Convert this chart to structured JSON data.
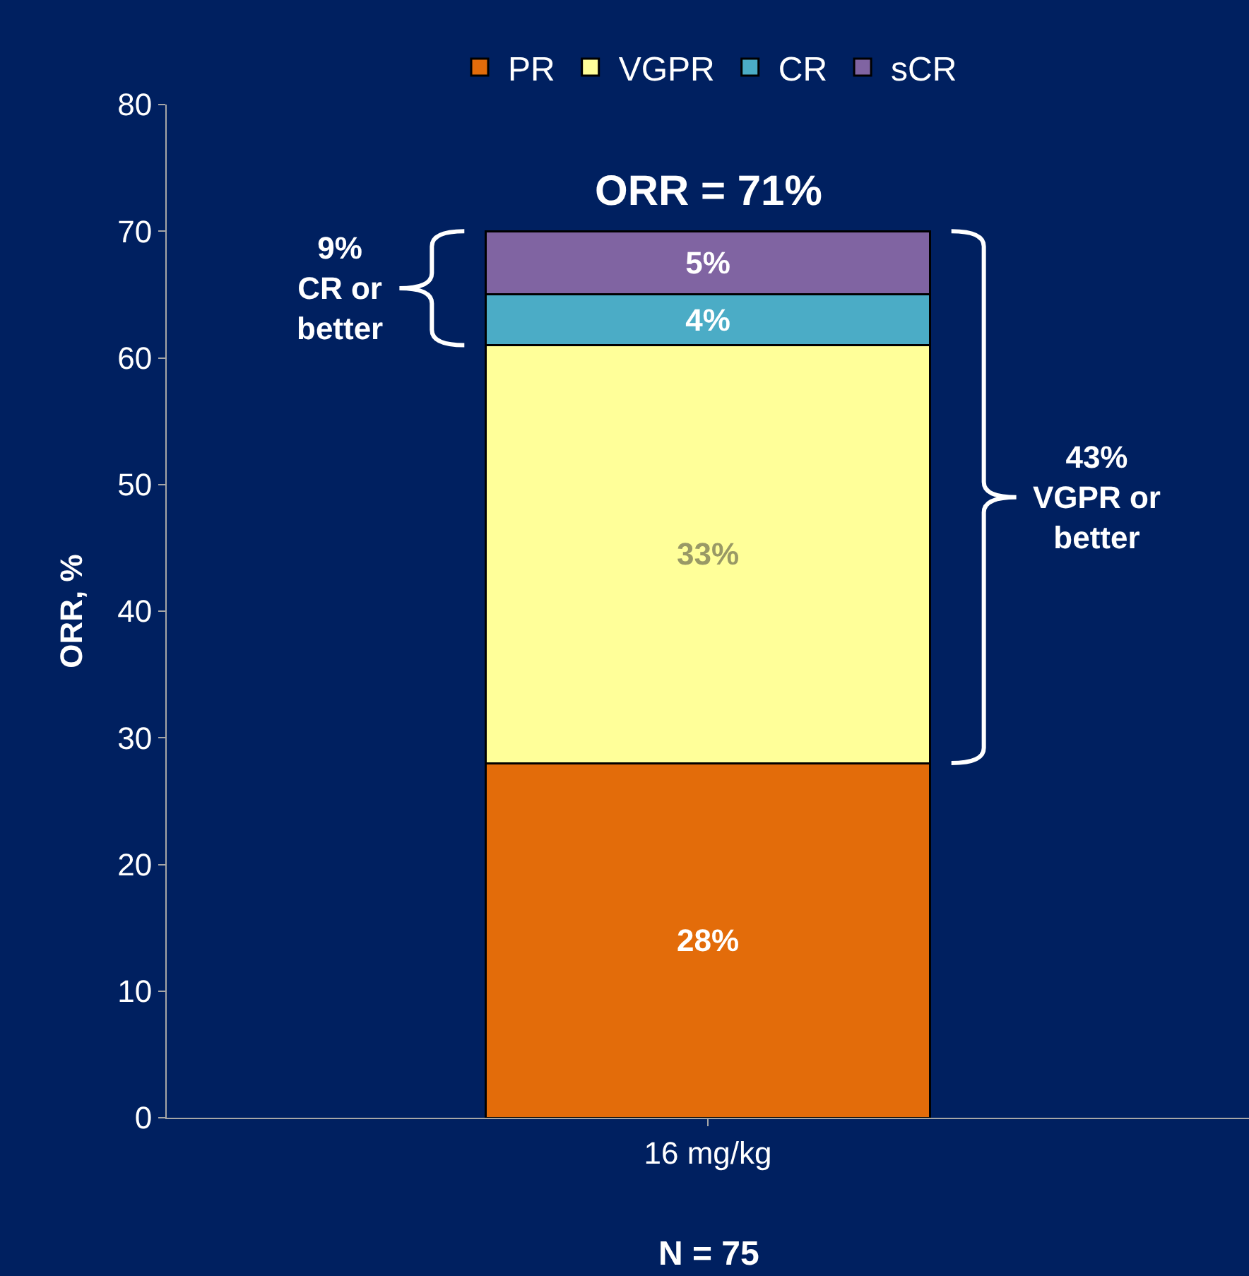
{
  "chart_data": {
    "type": "bar",
    "stacked": true,
    "ylabel": "ORR, %",
    "categories": [
      "16 mg/kg"
    ],
    "series": [
      {
        "name": "PR",
        "color": "#e36c0a",
        "values": [
          28
        ],
        "value_labels": [
          "28%"
        ]
      },
      {
        "name": "VGPR",
        "color": "#ffff99",
        "values": [
          33
        ],
        "value_labels": [
          "33%"
        ]
      },
      {
        "name": "CR",
        "color": "#4bacc6",
        "values": [
          4
        ],
        "value_labels": [
          "4%"
        ]
      },
      {
        "name": "sCR",
        "color": "#8064a2",
        "values": [
          5
        ],
        "value_labels": [
          "5%"
        ]
      }
    ],
    "ylim": [
      0,
      80
    ],
    "yticks": [
      0,
      10,
      20,
      30,
      40,
      50,
      60,
      70,
      80
    ],
    "grid": false,
    "legend": "top",
    "annotations": [
      "ORR = 71%",
      "9%\nCR or\nbetter",
      "43%\nVGPR or\nbetter",
      "N = 75"
    ]
  }
}
